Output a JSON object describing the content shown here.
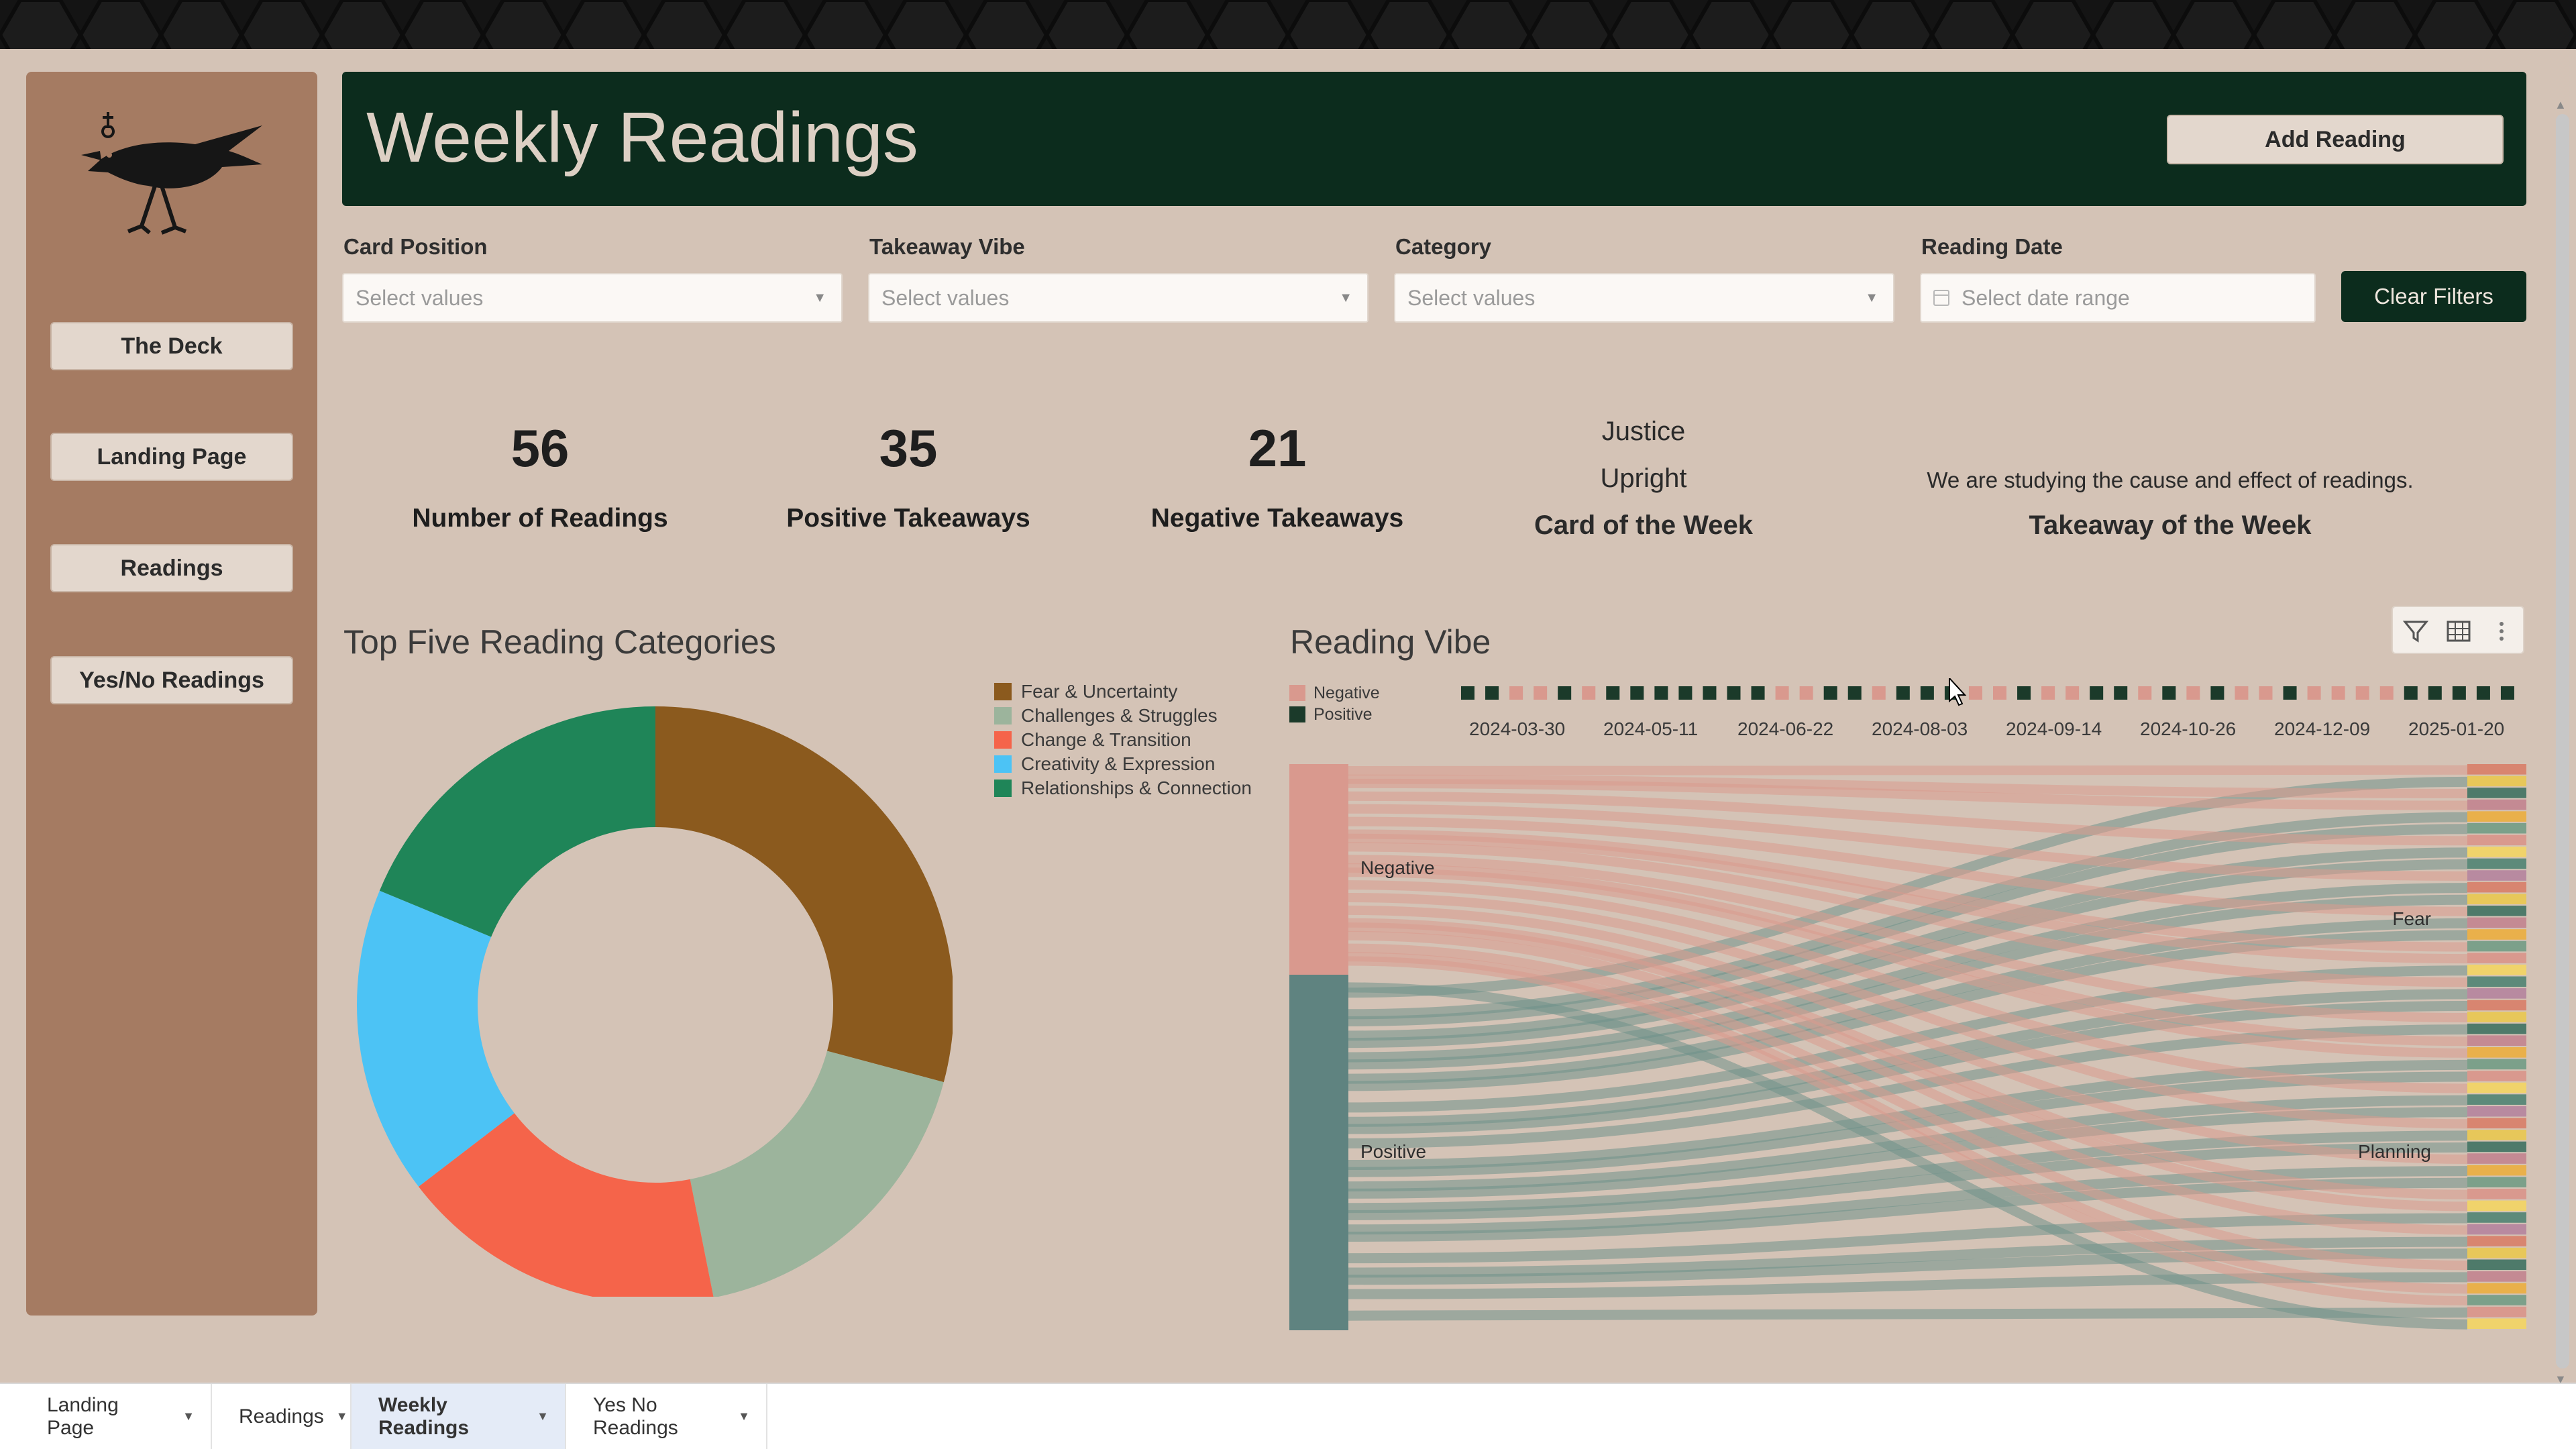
{
  "colors": {
    "page_bg": "#d4c3b6",
    "sidebar": "#a57b62",
    "header": "#0c2c1d",
    "negative": "#d9998e",
    "positive": "#1b3a2a"
  },
  "sidebar": {
    "logo_icon": "crow-icon",
    "nav": [
      "The Deck",
      "Landing Page",
      "Readings",
      "Yes/No Readings"
    ]
  },
  "header": {
    "title": "Weekly Readings",
    "add_button": "Add Reading"
  },
  "filters": {
    "card_position": {
      "label": "Card Position",
      "placeholder": "Select values"
    },
    "takeaway_vibe": {
      "label": "Takeaway Vibe",
      "placeholder": "Select values"
    },
    "category": {
      "label": "Category",
      "placeholder": "Select values"
    },
    "reading_date": {
      "label": "Reading Date",
      "placeholder": "Select date range"
    },
    "clear_button": "Clear Filters"
  },
  "kpis": [
    {
      "value": "56",
      "label": "Number of Readings"
    },
    {
      "value": "35",
      "label": "Positive Takeaways"
    },
    {
      "value": "21",
      "label": "Negative Takeaways"
    }
  ],
  "card_of_week": {
    "name": "Justice",
    "orientation": "Upright",
    "label": "Card of the Week"
  },
  "takeaway_of_week": {
    "text": "We are studying the cause and effect of readings.",
    "label": "Takeaway of the Week"
  },
  "top_categories": {
    "title": "Top Five Reading Categories",
    "chart_data": {
      "type": "pie",
      "donut": true,
      "categories": [
        "Fear & Uncertainty",
        "Challenges & Struggles",
        "Change & Transition",
        "Creativity & Expression",
        "Relationships & Connection"
      ],
      "values": [
        28,
        17,
        17,
        16,
        18
      ],
      "colors": [
        "#8b5a1e",
        "#9cb49c",
        "#f5644a",
        "#4cc3f5",
        "#1f8558"
      ],
      "legend": "right"
    }
  },
  "reading_vibe": {
    "title": "Reading Vibe",
    "legend": [
      {
        "name": "Negative",
        "color": "#d9998e"
      },
      {
        "name": "Positive",
        "color": "#1b3a2a"
      }
    ],
    "timeline": {
      "type": "scatter",
      "tick_labels": [
        "2024-03-30",
        "2024-05-11",
        "2024-06-22",
        "2024-08-03",
        "2024-09-14",
        "2024-10-26",
        "2024-12-09",
        "2025-01-20"
      ],
      "values": [
        "P",
        "P",
        "N",
        "N",
        "P",
        "N",
        "P",
        "P",
        "P",
        "P",
        "P",
        "P",
        "P",
        "N",
        "N",
        "P",
        "P",
        "N",
        "P",
        "P",
        "P",
        "N",
        "N",
        "P",
        "N",
        "N",
        "P",
        "P",
        "N",
        "P",
        "N",
        "P",
        "N",
        "N",
        "P",
        "N",
        "N",
        "N",
        "N",
        "P",
        "P",
        "P",
        "P",
        "P"
      ]
    },
    "sankey": {
      "nodes": [
        "Negative",
        "Positive",
        "Fear",
        "Planning"
      ],
      "source_values": [
        21,
        35
      ]
    },
    "toolbar": [
      "filter-icon",
      "table-icon",
      "more-icon"
    ]
  },
  "tabs": [
    {
      "label": "Landing Page",
      "active": false
    },
    {
      "label": "Readings",
      "active": false
    },
    {
      "label": "Weekly Readings",
      "active": true
    },
    {
      "label": "Yes No Readings",
      "active": false
    }
  ]
}
